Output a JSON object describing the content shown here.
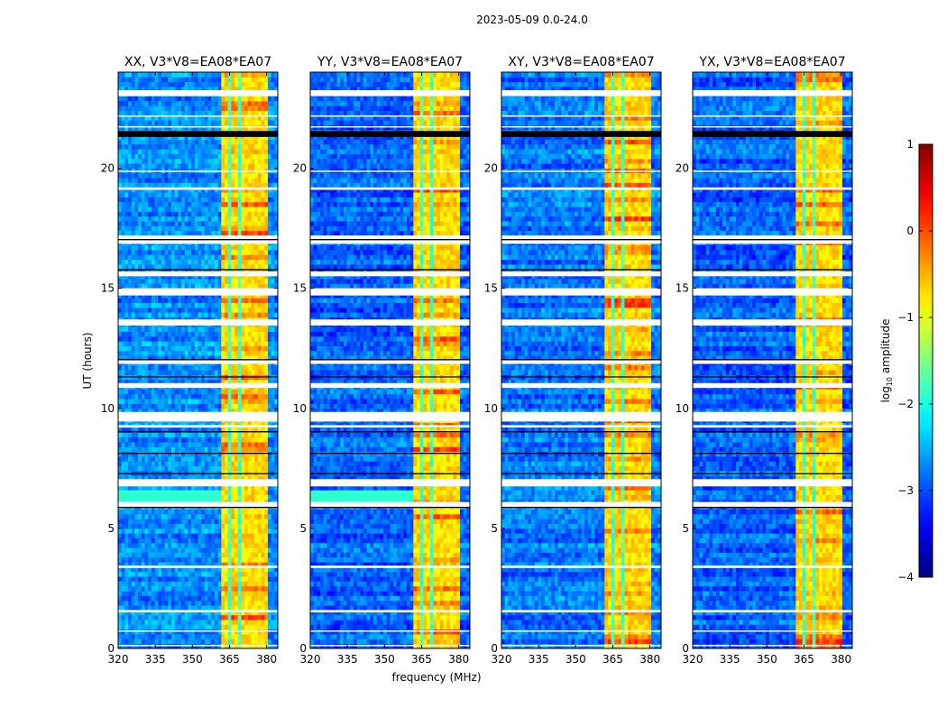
{
  "chart_data": {
    "type": "heatmap",
    "title": "2023-05-09 0.0-24.0",
    "xlabel": "frequency (MHz)",
    "ylabel": "UT (hours)",
    "xlim": [
      320,
      384.5
    ],
    "ylim": [
      0,
      24
    ],
    "xticks": [
      "320",
      "335",
      "350",
      "365",
      "380"
    ],
    "xtick_values": [
      320,
      335,
      350,
      365,
      380
    ],
    "yticks": [
      "0",
      "5",
      "10",
      "15",
      "20"
    ],
    "ytick_values": [
      0,
      5,
      10,
      15,
      20
    ],
    "panels": [
      {
        "title": "XX, V3*V8=EA08*EA07",
        "background_log_amp": -2.7
      },
      {
        "title": "YY, V3*V8=EA08*EA07",
        "background_log_amp": -2.9
      },
      {
        "title": "XY, V3*V8=EA08*EA07",
        "background_log_amp": -2.8
      },
      {
        "title": "YX, V3*V8=EA08*EA07",
        "background_log_amp": -2.9
      }
    ],
    "rfi_band_mhz": [
      361,
      380.5
    ],
    "rfi_band_log_amp": -0.7,
    "rfi_gap_channels_mhz": [
      [
        364.3,
        365.2
      ],
      [
        368.8,
        369.5
      ],
      [
        373.6,
        374.4
      ],
      [
        377.6,
        378.2
      ]
    ],
    "flagged_white_hours": [
      [
        23.0,
        23.25
      ],
      [
        22.15,
        22.2
      ],
      [
        21.7,
        21.75
      ],
      [
        19.85,
        19.9
      ],
      [
        19.1,
        19.2
      ],
      [
        16.85,
        17.2
      ],
      [
        15.5,
        15.7
      ],
      [
        14.7,
        15.0
      ],
      [
        13.45,
        13.7
      ],
      [
        11.85,
        12.0
      ],
      [
        10.85,
        11.05
      ],
      [
        9.45,
        9.85
      ],
      [
        9.2,
        9.3
      ],
      [
        6.75,
        7.05
      ],
      [
        5.85,
        6.1
      ],
      [
        3.35,
        3.45
      ],
      [
        1.5,
        1.6
      ],
      [
        0.7,
        0.75
      ],
      [
        0.1,
        0.15
      ]
    ],
    "flagged_black_hours": [
      [
        21.3,
        21.55
      ],
      [
        17.0,
        17.05
      ],
      [
        12.0,
        12.05
      ],
      [
        11.3,
        11.33
      ],
      [
        9.0,
        9.05
      ],
      [
        8.1,
        8.15
      ],
      [
        7.25,
        7.3
      ],
      [
        5.85,
        5.9
      ],
      [
        15.75,
        15.8
      ]
    ],
    "cyan_strip_hours": [
      6.1,
      6.5
    ],
    "colorbar": {
      "label_main": "log",
      "label_sub": "10",
      "label_rest": " amplitude",
      "range": [
        -4,
        1
      ],
      "colormap": "jet",
      "ticks": [
        "1",
        "0",
        "−1",
        "−2",
        "−3",
        "−4"
      ],
      "tick_values": [
        1,
        0,
        -1,
        -2,
        -3,
        -4
      ]
    }
  }
}
